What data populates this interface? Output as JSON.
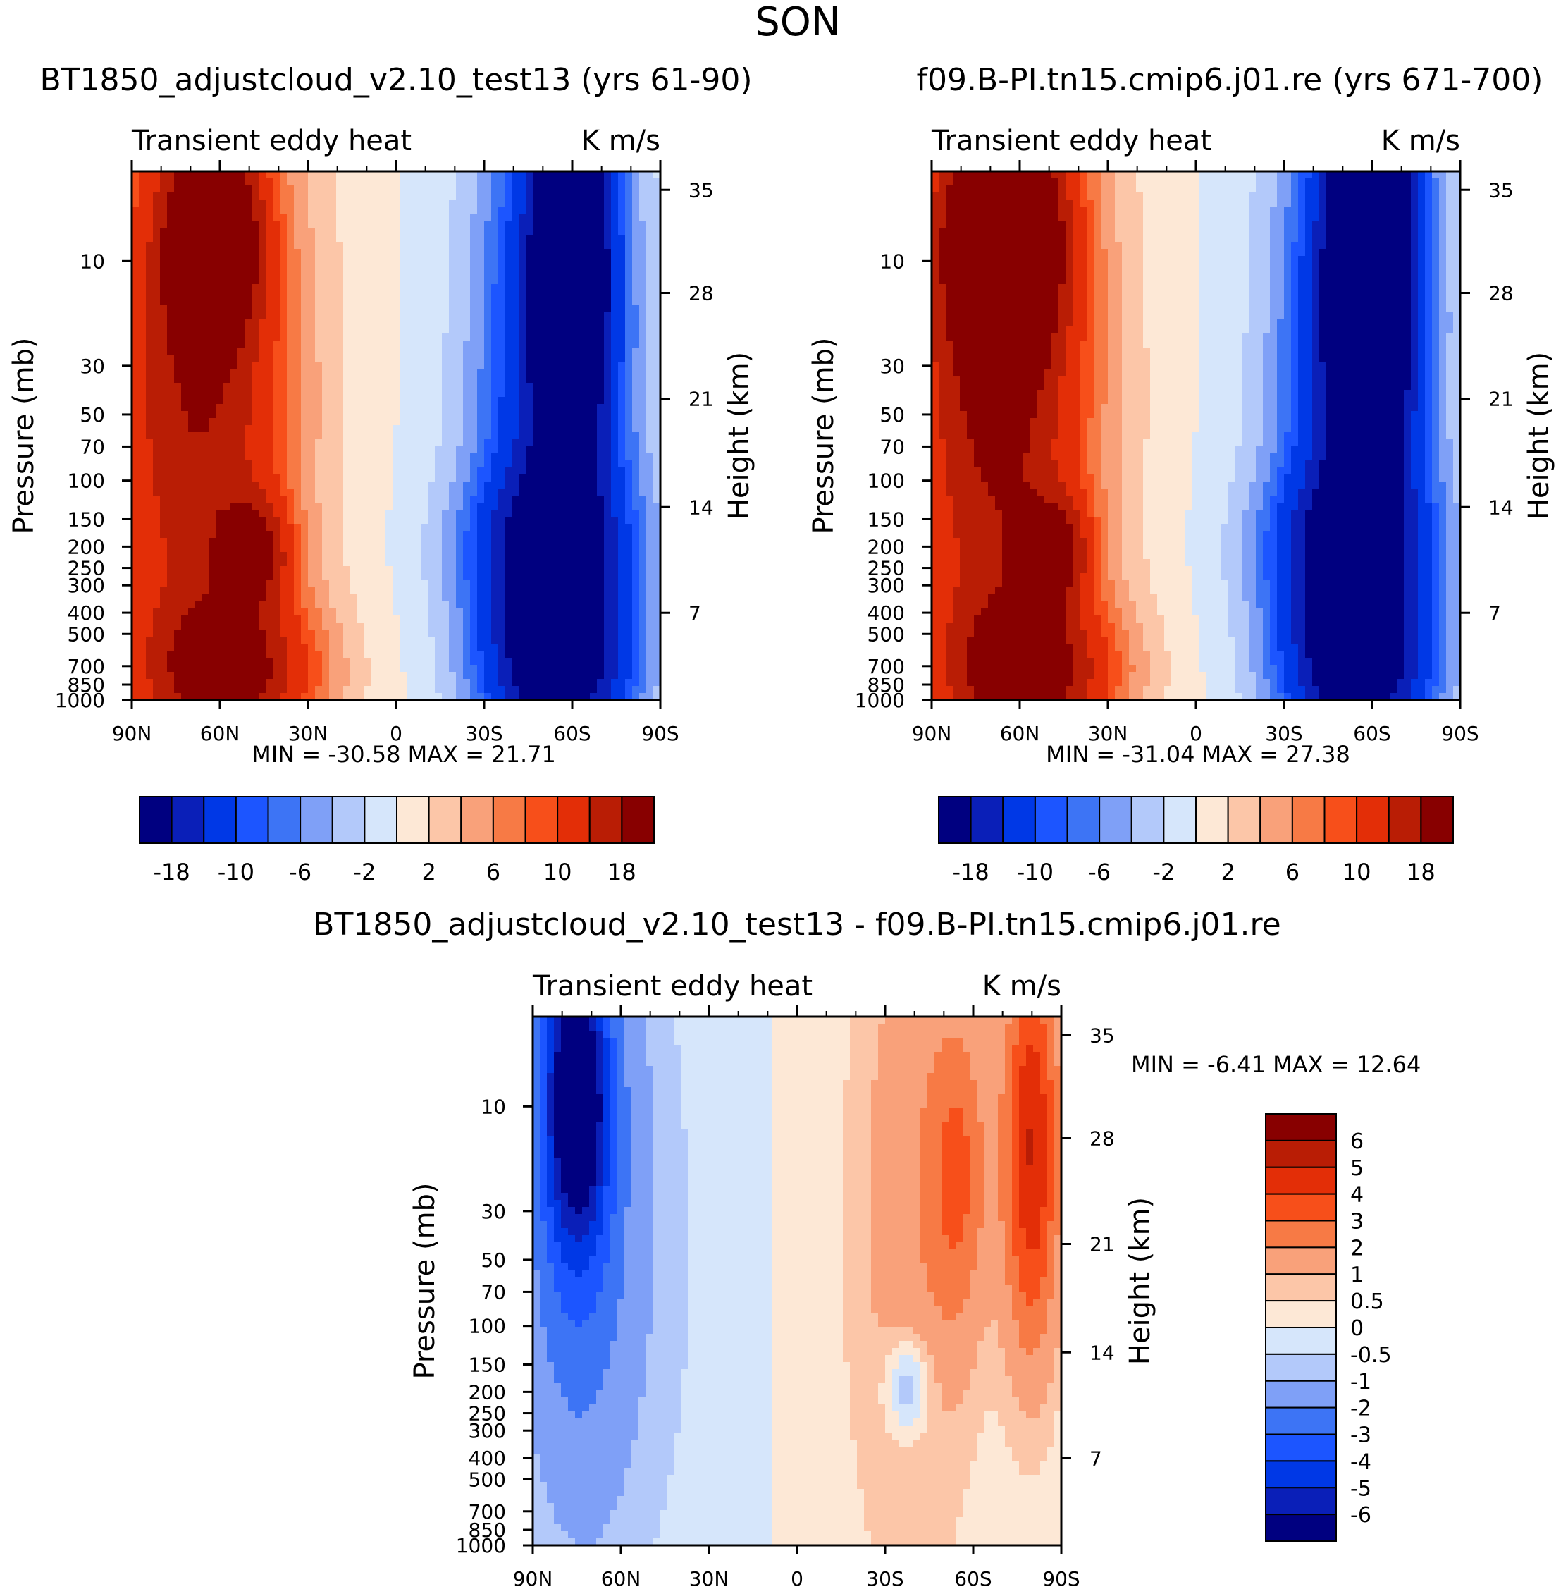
{
  "page_title": "SON",
  "colors": {
    "seq_main": [
      "#000080",
      "#0a1fb8",
      "#0038e6",
      "#1c55ff",
      "#3d74f5",
      "#7fa0f7",
      "#b3c9fa",
      "#d6e6fb",
      "#fde8d6",
      "#fcc6a8",
      "#f9a17a",
      "#f77a45",
      "#f74f1a",
      "#e32e07",
      "#b91d05",
      "#880000"
    ],
    "seq_diff": [
      "#000080",
      "#0a1fb8",
      "#0038e6",
      "#1c55ff",
      "#3d74f5",
      "#7fa0f7",
      "#b3c9fa",
      "#d6e6fb",
      "#fde8d6",
      "#fcc6a8",
      "#f9a17a",
      "#f77a45",
      "#f74f1a",
      "#e32e07",
      "#b91d05",
      "#880000"
    ]
  },
  "chart_data": [
    {
      "id": "panel-top-left",
      "type": "heatmap",
      "title": "BT1850_adjustcloud_v2.10_test13 (yrs 61-90)",
      "left_label": "Transient eddy heat",
      "right_label": "K m/s",
      "ylabel": "Pressure (mb)",
      "y2label": "Height (km)",
      "x_ticks": [
        "90N",
        "60N",
        "30N",
        "0",
        "30S",
        "60S",
        "90S"
      ],
      "y_ticks": [
        "10",
        "30",
        "50",
        "70",
        "100",
        "150",
        "200",
        "250",
        "300",
        "400",
        "500",
        "700",
        "850",
        "1000"
      ],
      "y2_ticks": [
        "35",
        "28",
        "21",
        "14",
        "7"
      ],
      "stats": {
        "min_label": "MIN =",
        "min": "-30.58",
        "max_label": "MAX =",
        "max": "21.71"
      },
      "colorbar_labels": [
        "-18",
        "-10",
        "-6",
        "-2",
        "2",
        "6",
        "10",
        "18"
      ],
      "blobs": [
        {
          "lat": 75,
          "lev": 0.5,
          "rx": 42,
          "ry": 95,
          "v": 8
        },
        {
          "lat": 65,
          "lev": 0.4,
          "rx": 28,
          "ry": 55,
          "v": 10
        },
        {
          "lat": 62,
          "lev": 0.12,
          "rx": 15,
          "ry": 18,
          "v": 20
        },
        {
          "lat": 55,
          "lev": 0.95,
          "rx": 30,
          "ry": 14,
          "v": 14
        },
        {
          "lat": 48,
          "lev": 0.72,
          "rx": 12,
          "ry": 10,
          "v": 12
        },
        {
          "lat": -55,
          "lev": 0.35,
          "rx": 25,
          "ry": 60,
          "v": -16
        },
        {
          "lat": -60,
          "lev": 0.15,
          "rx": 12,
          "ry": 35,
          "v": -24
        },
        {
          "lat": -52,
          "lev": 0.72,
          "rx": 28,
          "ry": 16,
          "v": -14
        },
        {
          "lat": -55,
          "lev": 0.95,
          "rx": 25,
          "ry": 14,
          "v": -18
        },
        {
          "lat": 20,
          "lev": 0.5,
          "rx": 50,
          "ry": 90,
          "v": 1.5
        },
        {
          "lat": -5,
          "lev": 0.5,
          "rx": 50,
          "ry": 90,
          "v": -1.5
        }
      ]
    },
    {
      "id": "panel-top-right",
      "type": "heatmap",
      "title": "f09.B-PI.tn15.cmip6.j01.re (yrs 671-700)",
      "left_label": "Transient eddy heat",
      "right_label": "K m/s",
      "ylabel": "Pressure (mb)",
      "y2label": "Height (km)",
      "x_ticks": [
        "90N",
        "60N",
        "30N",
        "0",
        "30S",
        "60S",
        "90S"
      ],
      "y_ticks": [
        "10",
        "30",
        "50",
        "70",
        "100",
        "150",
        "200",
        "250",
        "300",
        "400",
        "500",
        "700",
        "850",
        "1000"
      ],
      "y2_ticks": [
        "35",
        "28",
        "21",
        "14",
        "7"
      ],
      "stats": {
        "min_label": "MIN =",
        "min": "-31.04",
        "max_label": "MAX =",
        "max": "27.38"
      },
      "colorbar_labels": [
        "-18",
        "-10",
        "-6",
        "-2",
        "2",
        "6",
        "10",
        "18"
      ],
      "blobs": [
        {
          "lat": 75,
          "lev": 0.5,
          "rx": 42,
          "ry": 95,
          "v": 8
        },
        {
          "lat": 65,
          "lev": 0.35,
          "rx": 28,
          "ry": 60,
          "v": 12
        },
        {
          "lat": 65,
          "lev": 0.12,
          "rx": 18,
          "ry": 20,
          "v": 24
        },
        {
          "lat": 55,
          "lev": 0.95,
          "rx": 30,
          "ry": 14,
          "v": 14
        },
        {
          "lat": 48,
          "lev": 0.72,
          "rx": 12,
          "ry": 10,
          "v": 12
        },
        {
          "lat": -55,
          "lev": 0.35,
          "rx": 25,
          "ry": 60,
          "v": -16
        },
        {
          "lat": -60,
          "lev": 0.15,
          "rx": 14,
          "ry": 38,
          "v": -26
        },
        {
          "lat": -52,
          "lev": 0.72,
          "rx": 28,
          "ry": 16,
          "v": -14
        },
        {
          "lat": -55,
          "lev": 0.95,
          "rx": 25,
          "ry": 14,
          "v": -18
        },
        {
          "lat": 20,
          "lev": 0.5,
          "rx": 50,
          "ry": 90,
          "v": 1.5
        },
        {
          "lat": -5,
          "lev": 0.5,
          "rx": 50,
          "ry": 90,
          "v": -1.5
        }
      ]
    },
    {
      "id": "panel-bottom",
      "type": "heatmap",
      "title": "BT1850_adjustcloud_v2.10_test13 - f09.B-PI.tn15.cmip6.j01.re",
      "left_label": "Transient eddy heat",
      "right_label": "K m/s",
      "ylabel": "Pressure (mb)",
      "y2label": "Height (km)",
      "x_ticks": [
        "90N",
        "60N",
        "30N",
        "0",
        "30S",
        "60S",
        "90S"
      ],
      "y_ticks": [
        "10",
        "30",
        "50",
        "70",
        "100",
        "150",
        "200",
        "250",
        "300",
        "400",
        "500",
        "700",
        "850",
        "1000"
      ],
      "y2_ticks": [
        "35",
        "28",
        "21",
        "14",
        "7"
      ],
      "stats": {
        "min_label": "MIN =",
        "min": "-6.41",
        "max_label": "MAX =",
        "max": "12.64"
      },
      "colorbar_labels": [
        "6",
        "5",
        "4",
        "3",
        "2",
        "1",
        "0.5",
        "0",
        "-0.5",
        "-1",
        "-2",
        "-3",
        "-4",
        "-5",
        "-6"
      ],
      "blobs": [
        {
          "lat": 75,
          "lev": 0.3,
          "rx": 20,
          "ry": 60,
          "v": -3
        },
        {
          "lat": 75,
          "lev": 0.15,
          "rx": 10,
          "ry": 25,
          "v": -6
        },
        {
          "lat": 45,
          "lev": 0.5,
          "rx": 40,
          "ry": 90,
          "v": -0.7
        },
        {
          "lat": -40,
          "lev": 0.35,
          "rx": 20,
          "ry": 70,
          "v": 1.5
        },
        {
          "lat": -55,
          "lev": 0.3,
          "rx": 10,
          "ry": 30,
          "v": 2.5
        },
        {
          "lat": -80,
          "lev": 0.25,
          "rx": 10,
          "ry": 40,
          "v": 5
        },
        {
          "lat": -38,
          "lev": 0.7,
          "rx": 8,
          "ry": 10,
          "v": -2
        },
        {
          "lat": 10,
          "lev": 0.5,
          "rx": 60,
          "ry": 90,
          "v": 0.3
        }
      ]
    }
  ]
}
